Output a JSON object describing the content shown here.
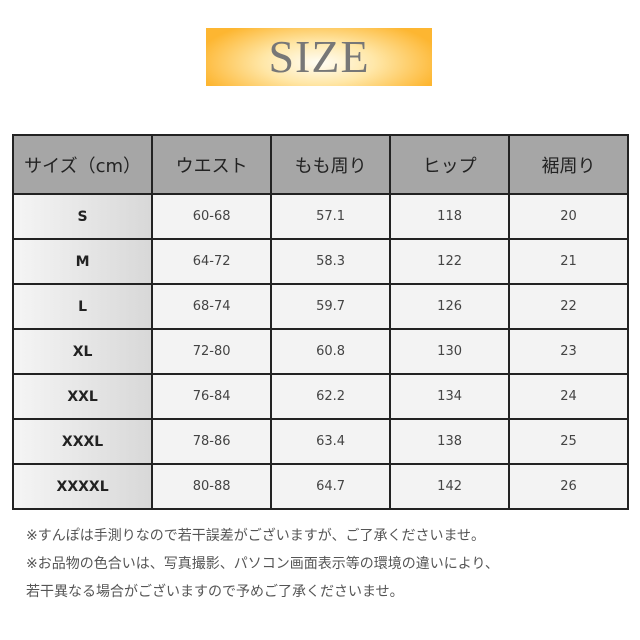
{
  "banner": {
    "title": "SIZE"
  },
  "table": {
    "headers": [
      "サイズ（cm）",
      "ウエスト",
      "もも周り",
      "ヒップ",
      "裾周り"
    ],
    "rows": [
      [
        "S",
        "60-68",
        "57.1",
        "118",
        "20"
      ],
      [
        "M",
        "64-72",
        "58.3",
        "122",
        "21"
      ],
      [
        "L",
        "68-74",
        "59.7",
        "126",
        "22"
      ],
      [
        "XL",
        "72-80",
        "60.8",
        "130",
        "23"
      ],
      [
        "XXL",
        "76-84",
        "62.2",
        "134",
        "24"
      ],
      [
        "XXXL",
        "78-86",
        "63.4",
        "138",
        "25"
      ],
      [
        "XXXXL",
        "80-88",
        "64.7",
        "142",
        "26"
      ]
    ]
  },
  "notes": [
    "※すんぽは手測りなので若干誤差がございますが、ご了承くださいませ。",
    "※お品物の色合いは、写真撮影、パソコン画面表示等の環境の違いにより、",
    "若干異なる場合がございますので予めご了承くださいませ。"
  ],
  "colors": {
    "banner_orange": "#fdb631",
    "header_gray": "#a6a6a6",
    "cell_bg": "#f3f3f3"
  }
}
